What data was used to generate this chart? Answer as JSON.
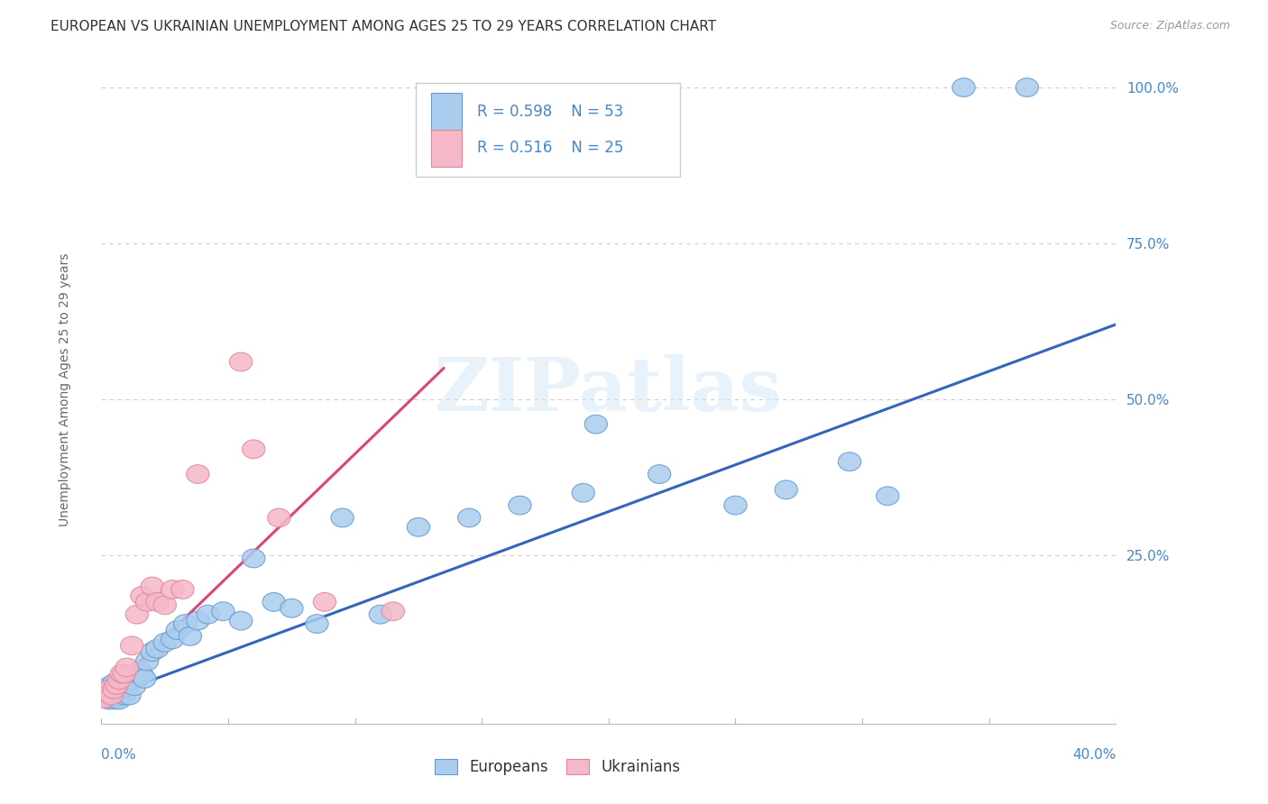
{
  "title": "EUROPEAN VS UKRAINIAN UNEMPLOYMENT AMONG AGES 25 TO 29 YEARS CORRELATION CHART",
  "source": "Source: ZipAtlas.com",
  "ylabel": "Unemployment Among Ages 25 to 29 years",
  "legend_label1": "Europeans",
  "legend_label2": "Ukrainians",
  "legend_r1": "R = 0.598",
  "legend_n1": "N = 53",
  "legend_r2": "R = 0.516",
  "legend_n2": "N = 25",
  "watermark": "ZIPatlas",
  "blue_scatter_color": "#aaccee",
  "blue_scatter_edge": "#6699cc",
  "pink_scatter_color": "#f5b8c8",
  "pink_scatter_edge": "#dd8899",
  "blue_line_color": "#3366bb",
  "pink_line_color": "#dd4477",
  "title_color": "#333333",
  "axis_label_color": "#666666",
  "tick_color": "#4488cc",
  "grid_color": "#cccccc",
  "background_color": "#ffffff",
  "xlim": [
    0.0,
    0.4
  ],
  "ylim": [
    -0.02,
    1.05
  ],
  "eu_x": [
    0.001,
    0.002,
    0.002,
    0.003,
    0.003,
    0.004,
    0.004,
    0.005,
    0.005,
    0.006,
    0.006,
    0.007,
    0.007,
    0.008,
    0.009,
    0.01,
    0.011,
    0.012,
    0.013,
    0.014,
    0.015,
    0.016,
    0.017,
    0.018,
    0.02,
    0.022,
    0.025,
    0.028,
    0.03,
    0.033,
    0.035,
    0.038,
    0.042,
    0.048,
    0.055,
    0.06,
    0.068,
    0.075,
    0.085,
    0.095,
    0.11,
    0.125,
    0.145,
    0.165,
    0.19,
    0.22,
    0.25,
    0.27,
    0.295,
    0.31,
    0.34,
    0.365,
    0.195
  ],
  "eu_y": [
    0.025,
    0.02,
    0.035,
    0.018,
    0.04,
    0.022,
    0.03,
    0.018,
    0.045,
    0.022,
    0.038,
    0.018,
    0.035,
    0.032,
    0.025,
    0.038,
    0.025,
    0.05,
    0.04,
    0.06,
    0.065,
    0.058,
    0.052,
    0.08,
    0.095,
    0.1,
    0.11,
    0.115,
    0.13,
    0.14,
    0.12,
    0.145,
    0.155,
    0.16,
    0.145,
    0.245,
    0.175,
    0.165,
    0.14,
    0.31,
    0.155,
    0.295,
    0.31,
    0.33,
    0.35,
    0.38,
    0.33,
    0.355,
    0.4,
    0.345,
    1.0,
    1.0,
    0.46
  ],
  "uk_x": [
    0.001,
    0.002,
    0.003,
    0.004,
    0.005,
    0.006,
    0.007,
    0.008,
    0.009,
    0.01,
    0.012,
    0.014,
    0.016,
    0.018,
    0.02,
    0.022,
    0.025,
    0.028,
    0.032,
    0.038,
    0.055,
    0.06,
    0.07,
    0.088,
    0.115
  ],
  "uk_y": [
    0.02,
    0.03,
    0.035,
    0.025,
    0.035,
    0.042,
    0.05,
    0.06,
    0.06,
    0.07,
    0.105,
    0.155,
    0.185,
    0.175,
    0.2,
    0.175,
    0.17,
    0.195,
    0.195,
    0.38,
    0.56,
    0.42,
    0.31,
    0.175,
    0.16
  ],
  "eu_line_x": [
    0.0,
    0.4
  ],
  "eu_line_y": [
    0.02,
    0.62
  ],
  "uk_line_x": [
    0.0,
    0.135
  ],
  "uk_line_y": [
    0.02,
    0.55
  ]
}
